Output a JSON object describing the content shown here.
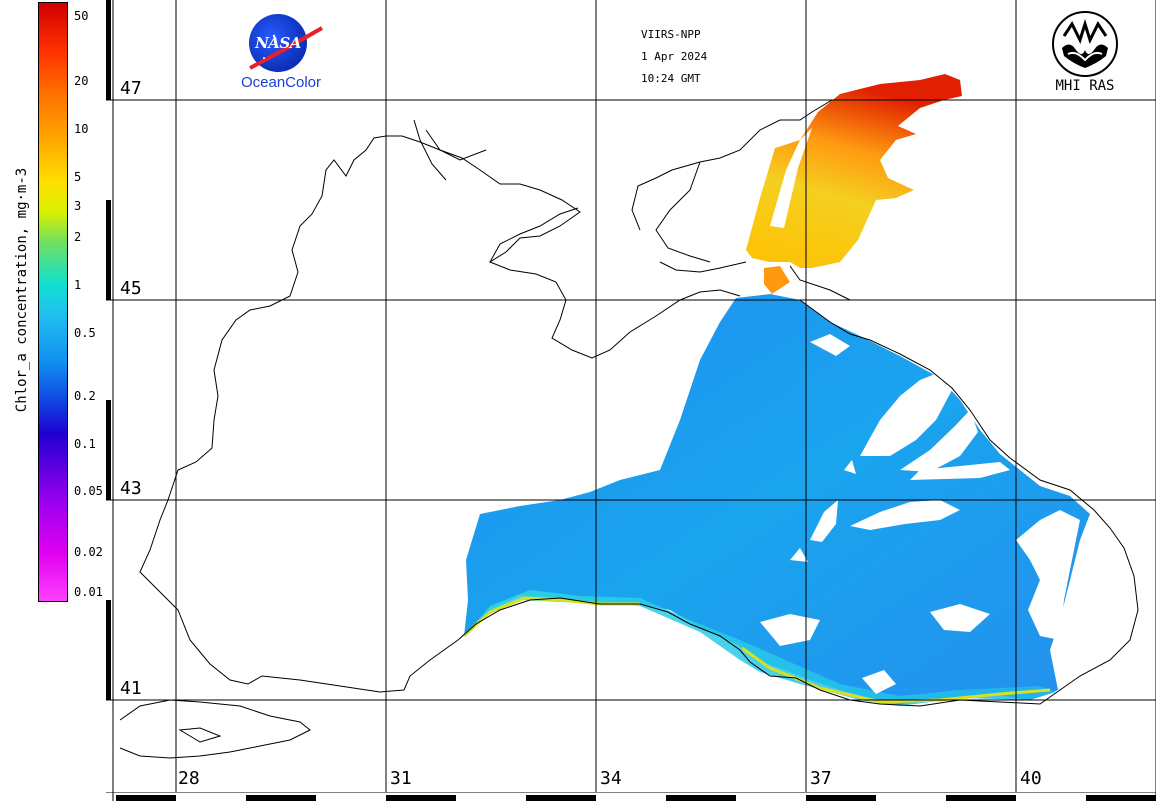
{
  "header": {
    "sensor": "VIIRS-NPP",
    "date": "1 Apr 2024",
    "time": "10:24 GMT"
  },
  "logos": {
    "nasa_text": "NASA",
    "ocean_color": "OceanColor",
    "mhi_text": "MHI RAS"
  },
  "colorbar": {
    "title": "Chlor_a concentration, mg·m-3",
    "ticks": [
      "50",
      "20",
      "10",
      "5",
      "3",
      "2",
      "1",
      "0.5",
      "0.2",
      "0.1",
      "0.05",
      "0.02",
      "0.01"
    ]
  },
  "map": {
    "latitudes": [
      "47",
      "45",
      "43",
      "41"
    ],
    "longitudes": [
      "28",
      "31",
      "34",
      "37",
      "40"
    ]
  },
  "colors": {
    "high": "#e02000",
    "mid": "#ffd000",
    "low": "#1aa0ee",
    "coast": "#000000"
  }
}
